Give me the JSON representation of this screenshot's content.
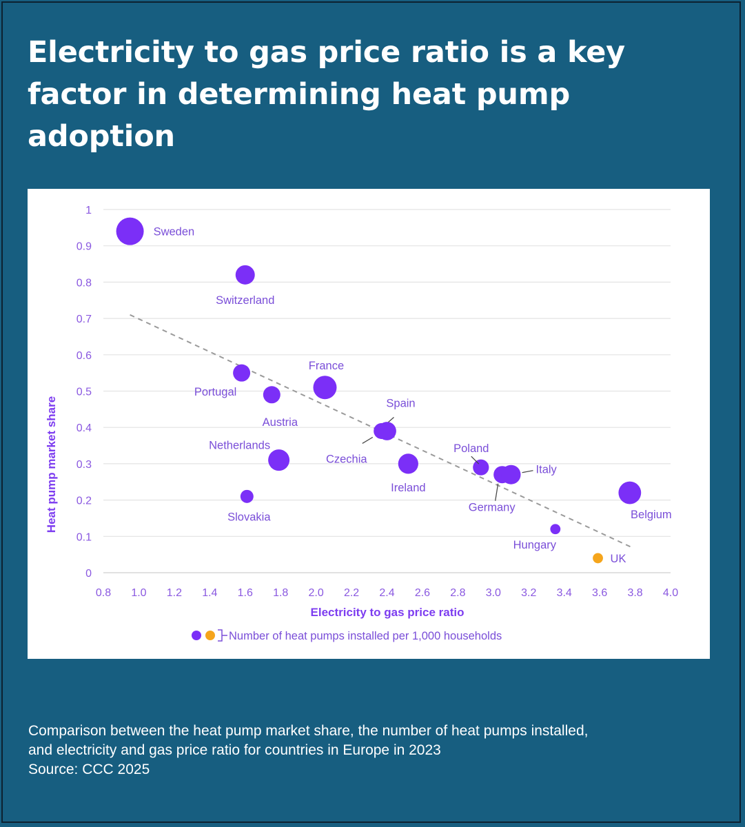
{
  "title": "Electricity to gas price ratio is a key factor in determining heat pump adoption",
  "caption": {
    "line1": "Comparison between the heat pump market share, the number of heat pumps installed,",
    "line2": "and electricity and gas price ratio for countries in Europe in 2023",
    "line3": "Source: CCC 2025"
  },
  "colors": {
    "background": "#175e80",
    "bubble": "#7b2ff7",
    "uk": "#f5a51c",
    "text_accent": "#7a4ed8",
    "trendline": "#9a9a9a"
  },
  "chart_data": {
    "type": "scatter",
    "variant": "bubble",
    "xlabel": "Electricity to gas price ratio",
    "ylabel": "Heat pump market share",
    "xlim": [
      0.8,
      4.0
    ],
    "ylim": [
      0,
      1
    ],
    "xticks": [
      "0.8",
      "1.0",
      "1.2",
      "1.4",
      "1.6",
      "1.8",
      "2.0",
      "2.2",
      "2.4",
      "2.6",
      "2.8",
      "3.0",
      "3.2",
      "3.4",
      "3.6",
      "3.8",
      "4.0"
    ],
    "yticks": [
      "0",
      "0.1",
      "0.2",
      "0.3",
      "0.4",
      "0.5",
      "0.6",
      "0.7",
      "0.8",
      "0.9",
      "1"
    ],
    "grid": "horizontal",
    "legend": "Number of heat pumps installed per 1,000 households",
    "trendline": {
      "x": [
        0.95,
        3.78
      ],
      "y": [
        0.71,
        0.07
      ],
      "style": "dashed"
    },
    "points": [
      {
        "name": "Sweden",
        "x": 0.95,
        "y": 0.94,
        "size": 5,
        "color": "purple"
      },
      {
        "name": "Switzerland",
        "x": 1.6,
        "y": 0.82,
        "size": 3,
        "color": "purple"
      },
      {
        "name": "Portugal",
        "x": 1.58,
        "y": 0.55,
        "size": 2.5,
        "color": "purple"
      },
      {
        "name": "Austria",
        "x": 1.75,
        "y": 0.49,
        "size": 2.5,
        "color": "purple"
      },
      {
        "name": "France",
        "x": 2.05,
        "y": 0.51,
        "size": 4,
        "color": "purple"
      },
      {
        "name": "Spain",
        "x": 2.4,
        "y": 0.39,
        "size": 2.8,
        "color": "purple"
      },
      {
        "name": "Czechia",
        "x": 2.37,
        "y": 0.39,
        "size": 2.2,
        "color": "purple"
      },
      {
        "name": "Netherlands",
        "x": 1.79,
        "y": 0.31,
        "size": 3.5,
        "color": "purple"
      },
      {
        "name": "Ireland",
        "x": 2.52,
        "y": 0.3,
        "size": 3.2,
        "color": "purple"
      },
      {
        "name": "Slovakia",
        "x": 1.61,
        "y": 0.21,
        "size": 1.5,
        "color": "purple"
      },
      {
        "name": "Poland",
        "x": 2.93,
        "y": 0.29,
        "size": 2.2,
        "color": "purple"
      },
      {
        "name": "Germany",
        "x": 3.05,
        "y": 0.27,
        "size": 2.5,
        "color": "purple"
      },
      {
        "name": "Italy",
        "x": 3.1,
        "y": 0.27,
        "size": 3.0,
        "color": "purple"
      },
      {
        "name": "Belgium",
        "x": 3.77,
        "y": 0.22,
        "size": 3.8,
        "color": "purple"
      },
      {
        "name": "Hungary",
        "x": 3.35,
        "y": 0.12,
        "size": 0.8,
        "color": "purple"
      },
      {
        "name": "UK",
        "x": 3.59,
        "y": 0.04,
        "size": 0.8,
        "color": "orange"
      }
    ]
  }
}
